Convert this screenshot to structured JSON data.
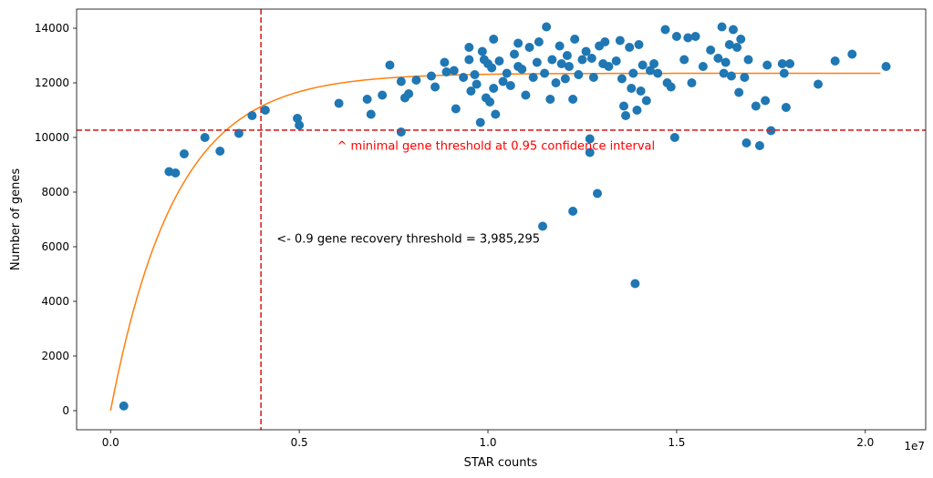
{
  "chart_data": {
    "type": "scatter",
    "title": "",
    "xlabel": "STAR counts",
    "ylabel": "Number of genes",
    "x_offset_label": "1e7",
    "xlim": [
      -900000,
      21600000
    ],
    "ylim": [
      -700,
      14700
    ],
    "x_ticks": [
      0,
      5000000,
      10000000,
      15000000,
      20000000
    ],
    "x_tick_labels": [
      "0.0",
      "0.5",
      "1.0",
      "1.5",
      "2.0"
    ],
    "y_ticks": [
      0,
      2000,
      4000,
      6000,
      8000,
      10000,
      12000,
      14000
    ],
    "y_tick_labels": [
      "0",
      "2000",
      "4000",
      "6000",
      "8000",
      "10000",
      "12000",
      "14000"
    ],
    "colors": {
      "points": "#1f77b4",
      "fit": "#ff7f0e",
      "threshold": "#d62728",
      "annotation_red": "#ff0000",
      "annotation_black": "#000000"
    },
    "fit_curve": {
      "name": "saturation fit",
      "model": "a*(1-exp(-x/k))",
      "a": 12350,
      "k": 1720000,
      "x_range": [
        0,
        20400000
      ]
    },
    "vertical_line": {
      "x": 3985295
    },
    "horizontal_line": {
      "y": 10270
    },
    "annotations": [
      {
        "text": "^ minimal gene threshold at 0.95 confidence interval",
        "x": 6000000,
        "y": 9550,
        "color": "#ff0000"
      },
      {
        "text": "<- 0.9 gene recovery threshold = 3,985,295",
        "x": 4400000,
        "y": 6150,
        "color": "#000000"
      }
    ],
    "points": [
      [
        350000,
        170
      ],
      [
        1550000,
        8750
      ],
      [
        1720000,
        8700
      ],
      [
        1950000,
        9400
      ],
      [
        2500000,
        10000
      ],
      [
        2900000,
        9500
      ],
      [
        3400000,
        10150
      ],
      [
        3750000,
        10800
      ],
      [
        4100000,
        11000
      ],
      [
        4950000,
        10700
      ],
      [
        5000000,
        10450
      ],
      [
        6050000,
        11250
      ],
      [
        6800000,
        11400
      ],
      [
        6900000,
        10850
      ],
      [
        7200000,
        11550
      ],
      [
        7400000,
        12650
      ],
      [
        7700000,
        10200
      ],
      [
        7700000,
        12050
      ],
      [
        7800000,
        11450
      ],
      [
        7900000,
        11600
      ],
      [
        8100000,
        12100
      ],
      [
        8500000,
        12250
      ],
      [
        8600000,
        11850
      ],
      [
        8850000,
        12750
      ],
      [
        8900000,
        12400
      ],
      [
        9100000,
        12450
      ],
      [
        9150000,
        11050
      ],
      [
        9350000,
        12200
      ],
      [
        9500000,
        13300
      ],
      [
        9500000,
        12850
      ],
      [
        9550000,
        11700
      ],
      [
        9650000,
        12300
      ],
      [
        9700000,
        11950
      ],
      [
        9800000,
        10550
      ],
      [
        9850000,
        13150
      ],
      [
        9900000,
        12850
      ],
      [
        9950000,
        11450
      ],
      [
        10000000,
        12700
      ],
      [
        10050000,
        11300
      ],
      [
        10100000,
        12550
      ],
      [
        10150000,
        13600
      ],
      [
        10150000,
        11800
      ],
      [
        10200000,
        10850
      ],
      [
        10300000,
        12800
      ],
      [
        10400000,
        12050
      ],
      [
        10500000,
        12350
      ],
      [
        10600000,
        11900
      ],
      [
        10700000,
        13050
      ],
      [
        10800000,
        12600
      ],
      [
        10800000,
        13450
      ],
      [
        10900000,
        12500
      ],
      [
        11000000,
        11550
      ],
      [
        11100000,
        13300
      ],
      [
        11200000,
        12200
      ],
      [
        11300000,
        12750
      ],
      [
        11350000,
        13500
      ],
      [
        11450000,
        6750
      ],
      [
        11500000,
        12350
      ],
      [
        11550000,
        14050
      ],
      [
        11650000,
        11400
      ],
      [
        11700000,
        12850
      ],
      [
        11800000,
        12000
      ],
      [
        11900000,
        13350
      ],
      [
        11950000,
        12700
      ],
      [
        12050000,
        12150
      ],
      [
        12100000,
        13000
      ],
      [
        12150000,
        12600
      ],
      [
        12250000,
        7300
      ],
      [
        12250000,
        11400
      ],
      [
        12300000,
        13600
      ],
      [
        12400000,
        12300
      ],
      [
        12500000,
        12850
      ],
      [
        12600000,
        13150
      ],
      [
        12700000,
        9950
      ],
      [
        12700000,
        9450
      ],
      [
        12750000,
        12900
      ],
      [
        12800000,
        12200
      ],
      [
        12900000,
        7950
      ],
      [
        12950000,
        13350
      ],
      [
        13050000,
        12700
      ],
      [
        13100000,
        13500
      ],
      [
        13200000,
        12600
      ],
      [
        13400000,
        12800
      ],
      [
        13500000,
        13550
      ],
      [
        13550000,
        12150
      ],
      [
        13600000,
        11150
      ],
      [
        13650000,
        10800
      ],
      [
        13750000,
        13300
      ],
      [
        13800000,
        11800
      ],
      [
        13850000,
        12350
      ],
      [
        13900000,
        4650
      ],
      [
        13950000,
        11000
      ],
      [
        14000000,
        13400
      ],
      [
        14050000,
        11700
      ],
      [
        14100000,
        12650
      ],
      [
        14200000,
        11350
      ],
      [
        14300000,
        12450
      ],
      [
        14400000,
        12700
      ],
      [
        14500000,
        12350
      ],
      [
        14700000,
        13950
      ],
      [
        14750000,
        12000
      ],
      [
        14850000,
        11850
      ],
      [
        14950000,
        10000
      ],
      [
        15000000,
        13700
      ],
      [
        15200000,
        12850
      ],
      [
        15300000,
        13650
      ],
      [
        15400000,
        12000
      ],
      [
        15500000,
        13700
      ],
      [
        15700000,
        12600
      ],
      [
        15900000,
        13200
      ],
      [
        16100000,
        12900
      ],
      [
        16200000,
        14050
      ],
      [
        16250000,
        12350
      ],
      [
        16300000,
        12750
      ],
      [
        16400000,
        13400
      ],
      [
        16450000,
        12250
      ],
      [
        16500000,
        13950
      ],
      [
        16600000,
        13300
      ],
      [
        16650000,
        11650
      ],
      [
        16700000,
        13600
      ],
      [
        16800000,
        12200
      ],
      [
        16850000,
        9800
      ],
      [
        16900000,
        12850
      ],
      [
        17100000,
        11150
      ],
      [
        17200000,
        9700
      ],
      [
        17350000,
        11350
      ],
      [
        17400000,
        12650
      ],
      [
        17500000,
        10250
      ],
      [
        17800000,
        12700
      ],
      [
        17850000,
        12350
      ],
      [
        17900000,
        11100
      ],
      [
        18000000,
        12700
      ],
      [
        18750000,
        11950
      ],
      [
        19200000,
        12800
      ],
      [
        19650000,
        13050
      ],
      [
        20550000,
        12600
      ]
    ]
  }
}
